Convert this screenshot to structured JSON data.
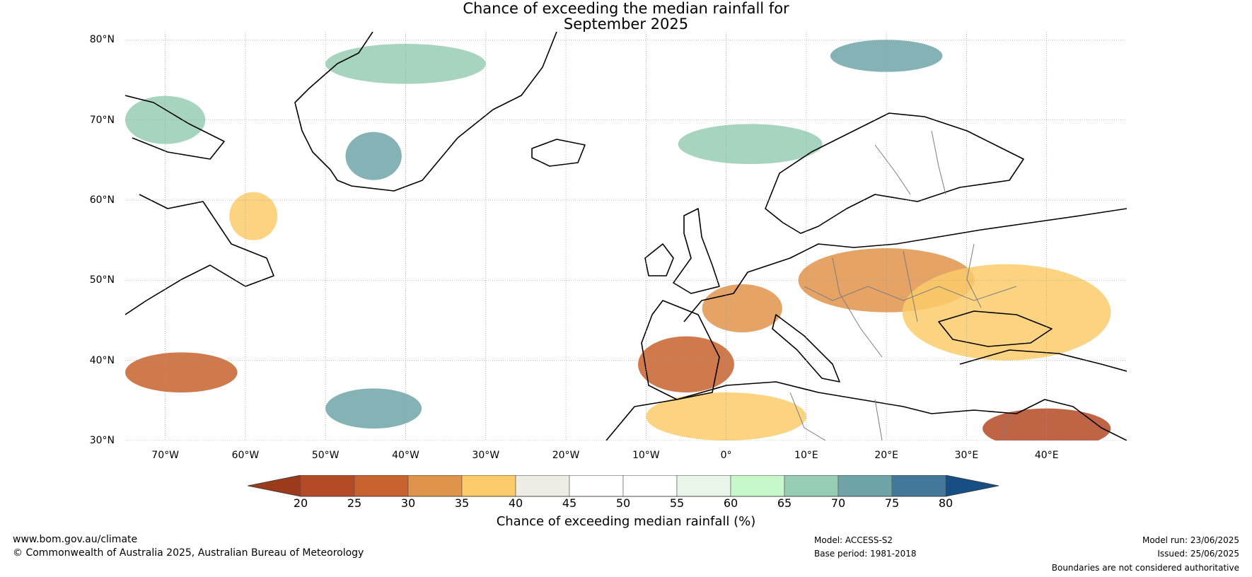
{
  "title": {
    "line1": "Chance of exceeding the median rainfall for",
    "line2": "September 2025"
  },
  "map": {
    "latitude_labels": [
      "80°N",
      "70°N",
      "60°N",
      "50°N",
      "40°N",
      "30°N"
    ],
    "longitude_labels": [
      "70°W",
      "60°W",
      "50°W",
      "40°W",
      "30°W",
      "20°W",
      "10°W",
      "0°",
      "10°E",
      "20°E",
      "30°E",
      "40°E"
    ],
    "lon_range": [
      -75,
      50
    ],
    "lat_range": [
      30,
      81
    ],
    "graticule_lons": [
      -70,
      -60,
      -50,
      -40,
      -30,
      -20,
      -10,
      0,
      10,
      20,
      30,
      40
    ],
    "graticule_lats": [
      30,
      40,
      50,
      60,
      70,
      80
    ],
    "background_color": "#ffffff"
  },
  "colorbar": {
    "tick_labels": [
      "20",
      "25",
      "30",
      "35",
      "40",
      "45",
      "50",
      "55",
      "60",
      "65",
      "70",
      "75",
      "80"
    ],
    "ticks": [
      20,
      25,
      30,
      35,
      40,
      45,
      50,
      55,
      60,
      65,
      70,
      75,
      80
    ],
    "colors": [
      "#9c3a1c",
      "#b44a26",
      "#c8622e",
      "#e0934a",
      "#fccb6a",
      "#efece6",
      "#ffffff",
      "#ffffff",
      "#e7f6e8",
      "#c7f8cb",
      "#97cdb4",
      "#6ea4a8",
      "#44789a",
      "#174f84"
    ],
    "label": "Chance of exceeding median rainfall (%)"
  },
  "footer": {
    "website": "www.bom.gov.au/climate",
    "copyright": "© Commonwealth of Australia 2025, Australian Bureau of Meteorology",
    "model": "Model: ACCESS-S2",
    "base_period": "Base period: 1981-2018",
    "model_run": "Model run: 23/06/2025",
    "issued": "Issued: 25/06/2025",
    "disclaimer": "Boundaries are not considered authoritative"
  },
  "regions": [
    {
      "name": "dry-iberia",
      "level": 25,
      "lon": -5,
      "lat": 39.5,
      "rlon": 6,
      "rlat": 3.5
    },
    {
      "name": "dry-france",
      "level": 30,
      "lon": 2,
      "lat": 46.5,
      "rlon": 5,
      "rlat": 3
    },
    {
      "name": "dry-central-europe",
      "level": 30,
      "lon": 20,
      "lat": 50,
      "rlon": 11,
      "rlat": 4
    },
    {
      "name": "dry-east-europe",
      "level": 35,
      "lon": 35,
      "lat": 46,
      "rlon": 13,
      "rlat": 6
    },
    {
      "name": "dry-north-africa",
      "level": 35,
      "lon": 0,
      "lat": 33,
      "rlon": 10,
      "rlat": 3
    },
    {
      "name": "dry-middle-east",
      "level": 20,
      "lon": 40,
      "lat": 31.5,
      "rlon": 8,
      "rlat": 2.5
    },
    {
      "name": "dry-atlantic-west",
      "level": 25,
      "lon": -68,
      "lat": 38.5,
      "rlon": 7,
      "rlat": 2.5
    },
    {
      "name": "dry-labrador",
      "level": 35,
      "lon": -59,
      "lat": 58,
      "rlon": 3,
      "rlat": 3
    },
    {
      "name": "wet-greenland-fjord",
      "level": 70,
      "lon": -44,
      "lat": 65.5,
      "rlon": 3.5,
      "rlat": 3
    },
    {
      "name": "wet-svalbard",
      "level": 70,
      "lon": 20,
      "lat": 78,
      "rlon": 7,
      "rlat": 2
    },
    {
      "name": "wet-norwegian-sea",
      "level": 65,
      "lon": 3,
      "lat": 67,
      "rlon": 9,
      "rlat": 2.5
    },
    {
      "name": "wet-atlantic-south",
      "level": 70,
      "lon": -44,
      "lat": 34,
      "rlon": 6,
      "rlat": 2.5
    },
    {
      "name": "wet-baffin",
      "level": 65,
      "lon": -70,
      "lat": 70,
      "rlon": 5,
      "rlat": 3
    },
    {
      "name": "wet-greenland-north",
      "level": 65,
      "lon": -40,
      "lat": 77,
      "rlon": 10,
      "rlat": 2.5
    }
  ]
}
